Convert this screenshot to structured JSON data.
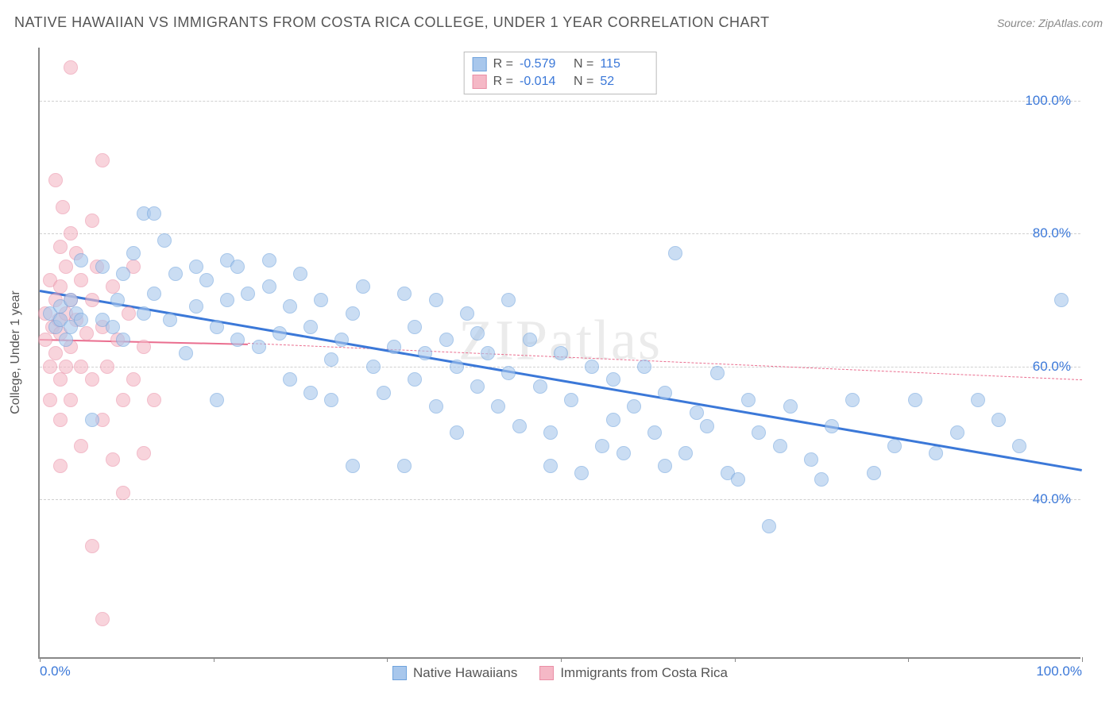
{
  "header": {
    "title": "NATIVE HAWAIIAN VS IMMIGRANTS FROM COSTA RICA COLLEGE, UNDER 1 YEAR CORRELATION CHART",
    "source": "Source: ZipAtlas.com"
  },
  "watermark": "ZIPatlas",
  "chart": {
    "type": "scatter",
    "y_axis_label": "College, Under 1 year",
    "xlim": [
      0,
      100
    ],
    "ylim": [
      16,
      108
    ],
    "x_ticks": [
      0,
      16.67,
      33.33,
      50,
      66.67,
      83.33,
      100
    ],
    "x_tick_labels": {
      "0": "0.0%",
      "100": "100.0%"
    },
    "y_ticks": [
      40,
      60,
      80,
      100
    ],
    "y_tick_labels": [
      "40.0%",
      "60.0%",
      "80.0%",
      "100.0%"
    ],
    "background_color": "#ffffff",
    "grid_color": "#d0d0d0",
    "axis_color": "#888888",
    "tick_label_color": "#3b78d8",
    "marker_radius": 9,
    "series": [
      {
        "name": "Native Hawaiians",
        "fill_color": "#a8c7ec",
        "stroke_color": "#6fa3dd",
        "fill_opacity": 0.6,
        "R": "-0.579",
        "N": "115",
        "trend": {
          "x1": 0,
          "y1": 71.5,
          "x2": 100,
          "y2": 44.5,
          "color": "#3b78d8",
          "width": 3,
          "dash": "solid"
        },
        "points": [
          [
            1,
            68
          ],
          [
            1.5,
            66
          ],
          [
            2,
            67
          ],
          [
            2,
            69
          ],
          [
            2.5,
            64
          ],
          [
            3,
            66
          ],
          [
            3,
            70
          ],
          [
            3.5,
            68
          ],
          [
            4,
            67
          ],
          [
            4,
            76
          ],
          [
            5,
            52
          ],
          [
            6,
            75
          ],
          [
            6,
            67
          ],
          [
            7,
            66
          ],
          [
            7.5,
            70
          ],
          [
            8,
            74
          ],
          [
            8,
            64
          ],
          [
            9,
            77
          ],
          [
            10,
            83
          ],
          [
            10,
            68
          ],
          [
            11,
            83
          ],
          [
            11,
            71
          ],
          [
            12,
            79
          ],
          [
            12.5,
            67
          ],
          [
            13,
            74
          ],
          [
            14,
            62
          ],
          [
            15,
            69
          ],
          [
            15,
            75
          ],
          [
            16,
            73
          ],
          [
            17,
            66
          ],
          [
            17,
            55
          ],
          [
            18,
            76
          ],
          [
            18,
            70
          ],
          [
            19,
            75
          ],
          [
            19,
            64
          ],
          [
            20,
            71
          ],
          [
            21,
            63
          ],
          [
            22,
            72
          ],
          [
            22,
            76
          ],
          [
            23,
            65
          ],
          [
            24,
            69
          ],
          [
            24,
            58
          ],
          [
            25,
            74
          ],
          [
            26,
            66
          ],
          [
            27,
            70
          ],
          [
            28,
            61
          ],
          [
            28,
            55
          ],
          [
            29,
            64
          ],
          [
            30,
            68
          ],
          [
            30,
            45
          ],
          [
            31,
            72
          ],
          [
            32,
            60
          ],
          [
            33,
            56
          ],
          [
            34,
            63
          ],
          [
            35,
            71
          ],
          [
            36,
            66
          ],
          [
            36,
            58
          ],
          [
            37,
            62
          ],
          [
            38,
            70
          ],
          [
            38,
            54
          ],
          [
            39,
            64
          ],
          [
            40,
            60
          ],
          [
            40,
            50
          ],
          [
            41,
            68
          ],
          [
            42,
            57
          ],
          [
            42,
            65
          ],
          [
            43,
            62
          ],
          [
            44,
            54
          ],
          [
            45,
            59
          ],
          [
            45,
            70
          ],
          [
            46,
            51
          ],
          [
            47,
            64
          ],
          [
            48,
            57
          ],
          [
            49,
            50
          ],
          [
            49,
            45
          ],
          [
            50,
            62
          ],
          [
            51,
            55
          ],
          [
            52,
            44
          ],
          [
            53,
            60
          ],
          [
            54,
            48
          ],
          [
            55,
            58
          ],
          [
            55,
            52
          ],
          [
            56,
            47
          ],
          [
            57,
            54
          ],
          [
            58,
            60
          ],
          [
            59,
            50
          ],
          [
            60,
            56
          ],
          [
            60,
            45
          ],
          [
            61,
            77
          ],
          [
            62,
            47
          ],
          [
            63,
            53
          ],
          [
            64,
            51
          ],
          [
            65,
            59
          ],
          [
            66,
            44
          ],
          [
            67,
            43
          ],
          [
            68,
            55
          ],
          [
            69,
            50
          ],
          [
            70,
            36
          ],
          [
            71,
            48
          ],
          [
            72,
            54
          ],
          [
            74,
            46
          ],
          [
            75,
            43
          ],
          [
            76,
            51
          ],
          [
            78,
            55
          ],
          [
            80,
            44
          ],
          [
            82,
            48
          ],
          [
            84,
            55
          ],
          [
            86,
            47
          ],
          [
            88,
            50
          ],
          [
            90,
            55
          ],
          [
            92,
            52
          ],
          [
            94,
            48
          ],
          [
            98,
            70
          ],
          [
            35,
            45
          ],
          [
            26,
            56
          ]
        ]
      },
      {
        "name": "Immigrants from Costa Rica",
        "fill_color": "#f5b8c6",
        "stroke_color": "#ea8fa6",
        "fill_opacity": 0.6,
        "R": "-0.014",
        "N": "52",
        "trend_solid": {
          "x1": 0,
          "y1": 64.2,
          "x2": 20,
          "y2": 63.5,
          "color": "#ea6e8f",
          "width": 2
        },
        "trend_dash": {
          "x1": 20,
          "y1": 63.5,
          "x2": 100,
          "y2": 58.0,
          "color": "#ea6e8f",
          "width": 1.5
        },
        "points": [
          [
            0.5,
            68
          ],
          [
            0.5,
            64
          ],
          [
            1,
            73
          ],
          [
            1,
            60
          ],
          [
            1,
            55
          ],
          [
            1.2,
            66
          ],
          [
            1.5,
            88
          ],
          [
            1.5,
            70
          ],
          [
            1.5,
            62
          ],
          [
            1.8,
            67
          ],
          [
            2,
            78
          ],
          [
            2,
            72
          ],
          [
            2,
            65
          ],
          [
            2,
            58
          ],
          [
            2,
            52
          ],
          [
            2.2,
            84
          ],
          [
            2.5,
            75
          ],
          [
            2.5,
            68
          ],
          [
            2.5,
            60
          ],
          [
            3,
            105
          ],
          [
            3,
            80
          ],
          [
            3,
            70
          ],
          [
            3,
            63
          ],
          [
            3,
            55
          ],
          [
            3.5,
            77
          ],
          [
            3.5,
            67
          ],
          [
            4,
            73
          ],
          [
            4,
            60
          ],
          [
            4,
            48
          ],
          [
            4.5,
            65
          ],
          [
            5,
            82
          ],
          [
            5,
            70
          ],
          [
            5,
            58
          ],
          [
            5.5,
            75
          ],
          [
            6,
            91
          ],
          [
            6,
            66
          ],
          [
            6,
            52
          ],
          [
            6.5,
            60
          ],
          [
            7,
            72
          ],
          [
            7,
            46
          ],
          [
            7.5,
            64
          ],
          [
            8,
            55
          ],
          [
            8,
            41
          ],
          [
            8.5,
            68
          ],
          [
            9,
            75
          ],
          [
            9,
            58
          ],
          [
            10,
            47
          ],
          [
            10,
            63
          ],
          [
            11,
            55
          ],
          [
            5,
            33
          ],
          [
            6,
            22
          ],
          [
            2,
            45
          ]
        ]
      }
    ],
    "legend_bottom": [
      "Native Hawaiians",
      "Immigrants from Costa Rica"
    ]
  }
}
